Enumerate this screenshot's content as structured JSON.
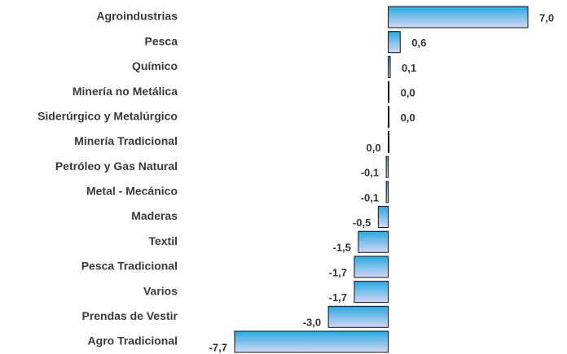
{
  "chart_data": {
    "type": "bar",
    "orientation": "horizontal",
    "categories": [
      "Agroindustrias",
      "Pesca",
      "Químico",
      "Minería no Metálica",
      "Siderúrgico y Metalúrgico",
      "Minería Tradicional",
      "Petróleo y Gas Natural",
      "Metal - Mecánico",
      "Maderas",
      "Textil",
      "Pesca Tradicional",
      "Varios",
      "Prendas de Vestir",
      "Agro Tradicional"
    ],
    "values": [
      7.0,
      0.6,
      0.1,
      0.0,
      0.0,
      -0.0,
      -0.1,
      -0.1,
      -0.5,
      -1.5,
      -1.7,
      -1.7,
      -3.0,
      -7.7
    ],
    "value_labels": [
      "7,0",
      "0,6",
      "0,1",
      "0,0",
      "0,0",
      "0,0",
      "-0,1",
      "-0,1",
      "-0,5",
      "-1,5",
      "-1,7",
      "-1,7",
      "-3,0",
      "-7,7"
    ],
    "color": "#29a8e0"
  }
}
